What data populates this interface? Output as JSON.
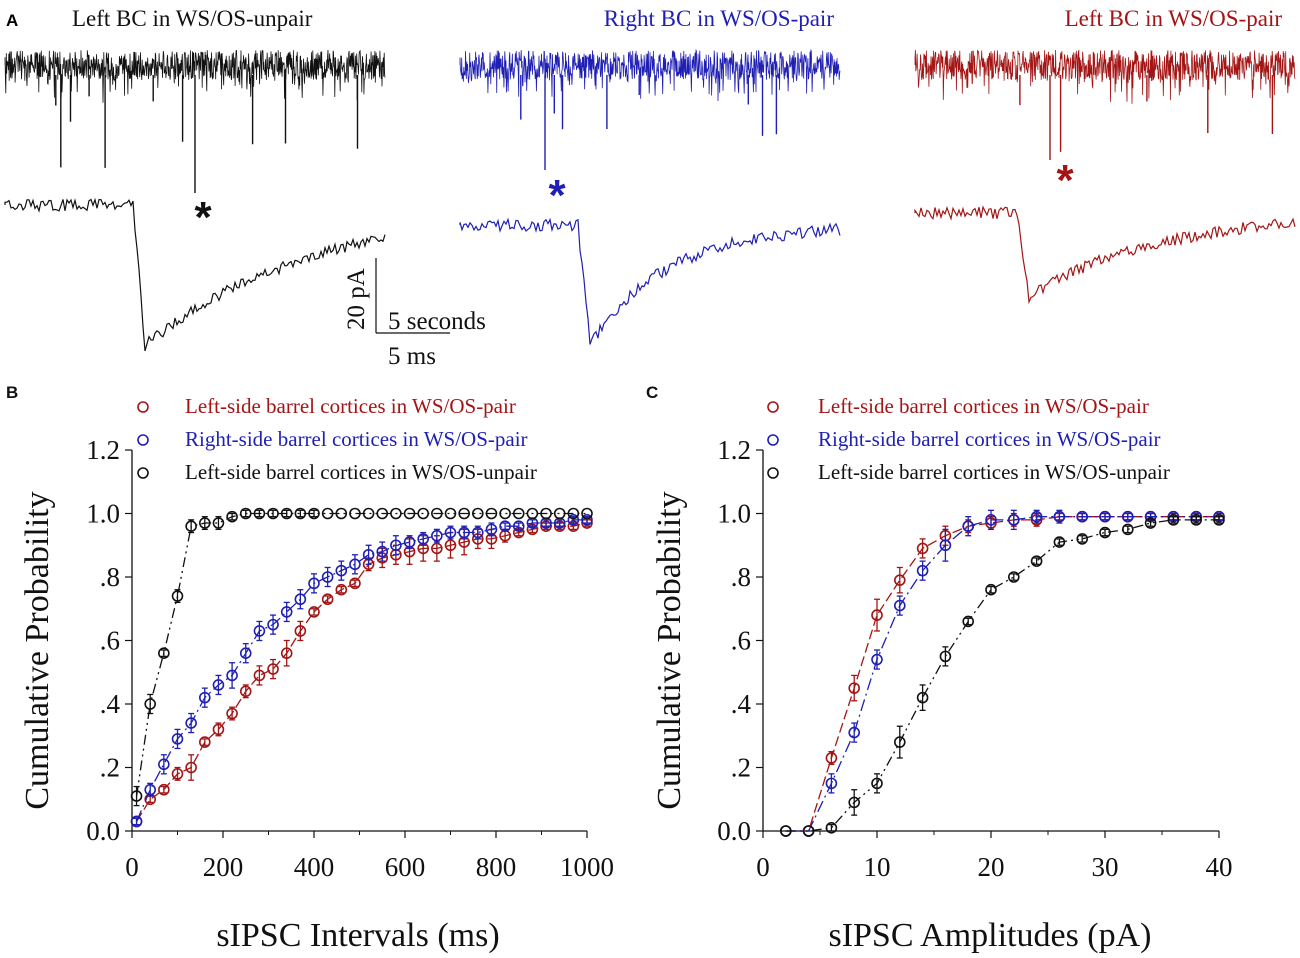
{
  "panel_a": {
    "letter": "A",
    "traces": [
      {
        "title": "Left BC in WS/OS-unpair",
        "color": "#111111",
        "seed": 11,
        "amplitude": 45,
        "big_spikes": 12,
        "marker": "*",
        "event_depth": 1.0,
        "decay": 1.2
      },
      {
        "title": "Right BC in WS/OS-pair",
        "color": "#1f1fb4",
        "seed": 29,
        "amplitude": 28,
        "big_spikes": 8,
        "marker": "*",
        "event_depth": 0.85,
        "decay": 0.55
      },
      {
        "title": "Left BC in WS/OS-pair",
        "color": "#a31515",
        "seed": 47,
        "amplitude": 22,
        "big_spikes": 5,
        "marker": "*",
        "event_depth": 0.6,
        "decay": 0.9
      }
    ],
    "scale_bar": {
      "vertical": "20 pA",
      "horizontal_top": "5 seconds",
      "horizontal_bottom": "5 ms"
    }
  },
  "chart_data": [
    {
      "type": "scatter",
      "panel": "B",
      "xlabel": "sIPSC Intervals (ms)",
      "ylabel": "Cumulative Probability",
      "xlim": [
        0,
        1000
      ],
      "ylim": [
        0,
        1.2
      ],
      "xticks": [
        0,
        200,
        400,
        600,
        800,
        1000
      ],
      "xtick_labels": [
        "0",
        "200",
        "400",
        "600",
        "800",
        "1000"
      ],
      "yticks": [
        0,
        0.2,
        0.4,
        0.6,
        0.8,
        1.0,
        1.2
      ],
      "ytick_labels": [
        "0.0",
        ".2",
        ".4",
        ".6",
        ".8",
        "1.0",
        "1.2"
      ],
      "legend": [
        "Left-side barrel cortices in WS/OS-pair",
        "Right-side barrel cortices in WS/OS-pair",
        "Left-side barrel cortices in WS/OS-unpair"
      ],
      "series": [
        {
          "name": "Left-side barrel cortices in WS/OS-pair",
          "color": "#a31515",
          "dash": "10,4",
          "x": [
            10,
            40,
            70,
            100,
            130,
            160,
            190,
            220,
            250,
            280,
            310,
            340,
            370,
            400,
            430,
            460,
            490,
            520,
            550,
            580,
            610,
            640,
            670,
            700,
            730,
            760,
            790,
            820,
            850,
            880,
            910,
            940,
            970,
            1000
          ],
          "y": [
            0.03,
            0.1,
            0.13,
            0.18,
            0.2,
            0.28,
            0.32,
            0.37,
            0.44,
            0.49,
            0.51,
            0.56,
            0.63,
            0.69,
            0.73,
            0.76,
            0.78,
            0.84,
            0.86,
            0.87,
            0.88,
            0.89,
            0.89,
            0.9,
            0.91,
            0.92,
            0.92,
            0.93,
            0.94,
            0.95,
            0.96,
            0.96,
            0.96,
            0.97
          ],
          "err": [
            0.01,
            0.01,
            0.01,
            0.02,
            0.04,
            0.01,
            0.02,
            0.02,
            0.02,
            0.03,
            0.03,
            0.04,
            0.03,
            0.01,
            0.01,
            0.01,
            0.01,
            0.02,
            0.03,
            0.03,
            0.04,
            0.04,
            0.04,
            0.04,
            0.04,
            0.03,
            0.03,
            0.02,
            0.01,
            0.01,
            0.01,
            0.01,
            0.01,
            0.01
          ]
        },
        {
          "name": "Right-side barrel cortices in WS/OS-pair",
          "color": "#1f1fb4",
          "dash": "12,4,2,4",
          "x": [
            10,
            40,
            70,
            100,
            130,
            160,
            190,
            220,
            250,
            280,
            310,
            340,
            370,
            400,
            430,
            460,
            490,
            520,
            550,
            580,
            610,
            640,
            670,
            700,
            730,
            760,
            790,
            820,
            850,
            880,
            910,
            940,
            970,
            1000
          ],
          "y": [
            0.03,
            0.13,
            0.21,
            0.29,
            0.34,
            0.42,
            0.46,
            0.49,
            0.56,
            0.63,
            0.65,
            0.69,
            0.73,
            0.78,
            0.8,
            0.82,
            0.84,
            0.87,
            0.88,
            0.9,
            0.91,
            0.92,
            0.93,
            0.94,
            0.94,
            0.94,
            0.95,
            0.96,
            0.96,
            0.97,
            0.97,
            0.97,
            0.98,
            0.98
          ],
          "err": [
            0.01,
            0.02,
            0.03,
            0.03,
            0.03,
            0.03,
            0.03,
            0.04,
            0.03,
            0.03,
            0.03,
            0.03,
            0.03,
            0.03,
            0.03,
            0.03,
            0.03,
            0.03,
            0.03,
            0.03,
            0.02,
            0.02,
            0.02,
            0.02,
            0.02,
            0.02,
            0.02,
            0.01,
            0.01,
            0.01,
            0.01,
            0.01,
            0.01,
            0.01
          ]
        },
        {
          "name": "Left-side barrel cortices in WS/OS-unpair",
          "color": "#111111",
          "dash": "10,4,2,4,2,4",
          "x": [
            10,
            40,
            70,
            100,
            130,
            160,
            190,
            220,
            250,
            280,
            310,
            340,
            370,
            400,
            430,
            460,
            490,
            520,
            550,
            580,
            610,
            640,
            670,
            700,
            730,
            760,
            790,
            820,
            850,
            880,
            910,
            940,
            970,
            1000
          ],
          "y": [
            0.11,
            0.4,
            0.56,
            0.74,
            0.96,
            0.97,
            0.97,
            0.99,
            1.0,
            1.0,
            1.0,
            1.0,
            1.0,
            1.0,
            1.0,
            1.0,
            1.0,
            1.0,
            1.0,
            1.0,
            1.0,
            1.0,
            1.0,
            1.0,
            1.0,
            1.0,
            1.0,
            1.0,
            1.0,
            1.0,
            1.0,
            1.0,
            1.0,
            1.0
          ],
          "err": [
            0.03,
            0.03,
            0.01,
            0.02,
            0.02,
            0.02,
            0.02,
            0.01,
            0.01,
            0.01,
            0.01,
            0.01,
            0.01,
            0.01,
            0.0,
            0.0,
            0.0,
            0.0,
            0.0,
            0.0,
            0.0,
            0.0,
            0.0,
            0.0,
            0.0,
            0.0,
            0.0,
            0.0,
            0.0,
            0.0,
            0.0,
            0.0,
            0.0,
            0.0
          ]
        }
      ]
    },
    {
      "type": "scatter",
      "panel": "C",
      "xlabel": "sIPSC Amplitudes (pA)",
      "ylabel": "Cumulative Probability",
      "xlim": [
        0,
        40
      ],
      "ylim": [
        0,
        1.2
      ],
      "xticks": [
        0,
        10,
        20,
        30,
        40
      ],
      "xtick_labels": [
        "0",
        "10",
        "20",
        "30",
        "40"
      ],
      "yticks": [
        0,
        0.2,
        0.4,
        0.6,
        0.8,
        1.0,
        1.2
      ],
      "ytick_labels": [
        "0.0",
        ".2",
        ".4",
        ".6",
        ".8",
        "1.0",
        "1.2"
      ],
      "legend": [
        "Left-side barrel cortices in WS/OS-pair",
        "Right-side barrel cortices in WS/OS-pair",
        "Left-side barrel cortices in WS/OS-unpair"
      ],
      "series": [
        {
          "name": "Left-side barrel cortices in WS/OS-pair",
          "color": "#a31515",
          "dash": "10,4",
          "x": [
            2,
            4,
            6,
            8,
            10,
            12,
            14,
            16,
            18,
            20,
            22,
            24,
            26,
            28,
            30,
            32,
            34,
            36,
            38,
            40
          ],
          "y": [
            0,
            0,
            0.23,
            0.45,
            0.68,
            0.79,
            0.89,
            0.93,
            0.96,
            0.97,
            0.98,
            0.98,
            0.99,
            0.99,
            0.99,
            0.99,
            0.99,
            0.99,
            0.99,
            0.99
          ],
          "err": [
            0,
            0,
            0.02,
            0.04,
            0.05,
            0.04,
            0.03,
            0.03,
            0.02,
            0.02,
            0.02,
            0.02,
            0.01,
            0.01,
            0.01,
            0.01,
            0.01,
            0.01,
            0.01,
            0.01
          ]
        },
        {
          "name": "Right-side barrel cortices in WS/OS-pair",
          "color": "#1f1fb4",
          "dash": "12,4,2,4",
          "x": [
            2,
            4,
            6,
            8,
            10,
            12,
            14,
            16,
            18,
            20,
            22,
            24,
            26,
            28,
            30,
            32,
            34,
            36,
            38,
            40
          ],
          "y": [
            0,
            0,
            0.15,
            0.31,
            0.54,
            0.71,
            0.82,
            0.9,
            0.96,
            0.98,
            0.98,
            0.99,
            0.99,
            0.99,
            0.99,
            0.99,
            0.99,
            0.99,
            0.99,
            0.99
          ],
          "err": [
            0,
            0,
            0.03,
            0.03,
            0.03,
            0.03,
            0.03,
            0.05,
            0.03,
            0.03,
            0.03,
            0.02,
            0.02,
            0.01,
            0.01,
            0.01,
            0.01,
            0.01,
            0.01,
            0.01
          ]
        },
        {
          "name": "Left-side barrel cortices in WS/OS-unpair",
          "color": "#111111",
          "dash": "10,4,2,4,2,4",
          "x": [
            2,
            4,
            6,
            8,
            10,
            12,
            14,
            16,
            18,
            20,
            22,
            24,
            26,
            28,
            30,
            32,
            34,
            36,
            38,
            40
          ],
          "y": [
            0,
            0,
            0.01,
            0.09,
            0.15,
            0.28,
            0.42,
            0.55,
            0.66,
            0.76,
            0.8,
            0.85,
            0.91,
            0.92,
            0.94,
            0.95,
            0.97,
            0.98,
            0.98,
            0.98
          ],
          "err": [
            0,
            0,
            0.01,
            0.04,
            0.03,
            0.05,
            0.04,
            0.03,
            0.01,
            0.01,
            0.01,
            0.01,
            0.01,
            0.01,
            0.01,
            0.01,
            0.01,
            0.01,
            0.01,
            0.01
          ]
        }
      ]
    }
  ]
}
